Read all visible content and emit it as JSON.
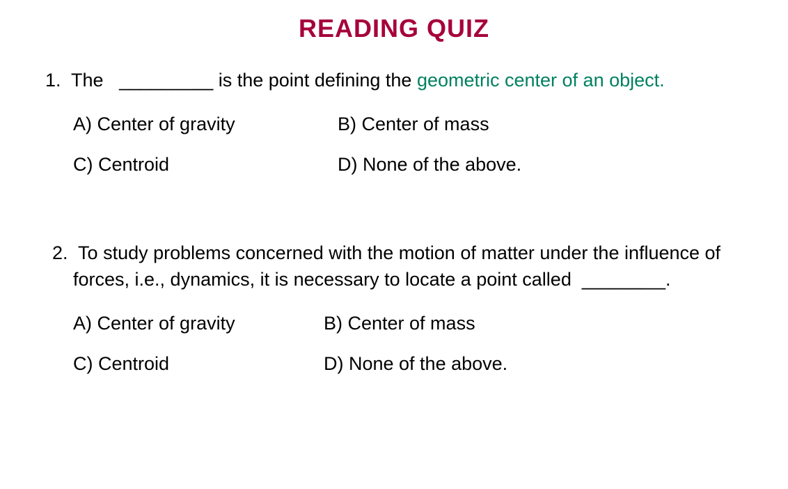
{
  "title": {
    "text": "READING QUIZ",
    "color": "#a6003b",
    "fontsize": 36
  },
  "body": {
    "color": "#000000",
    "fontsize": 27
  },
  "highlight_color": "#008060",
  "questions": [
    {
      "number": "1.",
      "prefix": "  The   ",
      "blank": "_________",
      "mid": " is the point defining the ",
      "highlight": "geometric center of an object.",
      "options": {
        "A": "A)  Center of gravity",
        "B": "B)  Center of mass",
        "C": "C)  Centroid",
        "D": "D)  None of the above."
      }
    },
    {
      "number": "2.",
      "text": "  To study problems concerned with the motion of matter under the influence of forces, i.e., dynamics, it is necessary to locate a point called  ",
      "blank": "________",
      "suffix": ".",
      "options": {
        "A": "A)  Center of gravity",
        "B": "B)  Center of mass",
        "C": "C)  Centroid",
        "D": "D)  None of the above."
      }
    }
  ]
}
